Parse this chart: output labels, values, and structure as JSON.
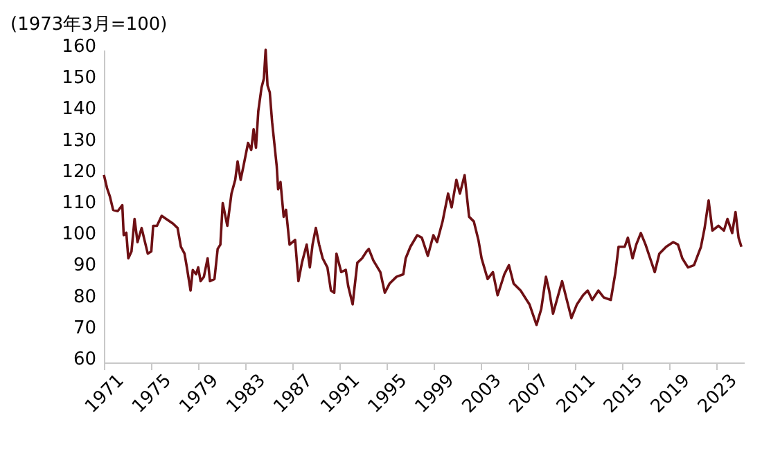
{
  "chart_data": {
    "type": "line",
    "ylabel": "(1973年3月=100)",
    "xlim": [
      1971,
      2025.3
    ],
    "xticks": [
      1971,
      1975,
      1979,
      1983,
      1987,
      1991,
      1995,
      1999,
      2003,
      2007,
      2011,
      2015,
      2019,
      2023
    ],
    "ylim": [
      60,
      160
    ],
    "yticks": [
      60,
      70,
      80,
      90,
      100,
      110,
      120,
      130,
      140,
      150,
      160
    ],
    "grid": false,
    "marker": "none",
    "line_style": "solid",
    "series": [
      {
        "color": "#6e1014",
        "x": [
          1971.0,
          1971.27,
          1971.5,
          1971.78,
          1972.17,
          1972.56,
          1972.68,
          1972.9,
          1973.07,
          1973.34,
          1973.6,
          1973.85,
          1974.2,
          1974.44,
          1974.72,
          1975.02,
          1975.18,
          1975.5,
          1975.9,
          1976.28,
          1976.86,
          1977.25,
          1977.53,
          1977.84,
          1978.04,
          1978.35,
          1978.54,
          1978.82,
          1979.0,
          1979.2,
          1979.48,
          1979.8,
          1980.0,
          1980.38,
          1980.65,
          1980.88,
          1981.08,
          1981.47,
          1981.82,
          1982.14,
          1982.34,
          1982.6,
          1982.84,
          1983.23,
          1983.5,
          1983.7,
          1983.9,
          1984.1,
          1984.37,
          1984.57,
          1984.72,
          1984.88,
          1985.07,
          1985.27,
          1985.66,
          1985.78,
          1985.98,
          1986.25,
          1986.45,
          1986.75,
          1987.22,
          1987.5,
          1987.8,
          1988.2,
          1988.47,
          1988.7,
          1988.98,
          1989.26,
          1989.56,
          1989.96,
          1990.26,
          1990.54,
          1990.73,
          1991.13,
          1991.52,
          1991.72,
          1992.1,
          1992.5,
          1992.9,
          1993.28,
          1993.47,
          1993.86,
          1994.45,
          1994.83,
          1995.23,
          1995.82,
          1996.4,
          1996.6,
          1997.0,
          1997.58,
          1997.97,
          1998.48,
          1998.95,
          1999.26,
          1999.73,
          2000.2,
          2000.5,
          2000.9,
          2001.2,
          2001.6,
          2001.98,
          2002.38,
          2002.77,
          2003.04,
          2003.55,
          2004.0,
          2004.4,
          2004.97,
          2005.36,
          2005.76,
          2006.35,
          2007.1,
          2007.7,
          2008.1,
          2008.5,
          2008.77,
          2009.1,
          2009.87,
          2010.27,
          2010.66,
          2011.13,
          2011.65,
          2012.04,
          2012.43,
          2012.95,
          2013.4,
          2014.0,
          2014.4,
          2014.66,
          2015.18,
          2015.45,
          2015.85,
          2016.16,
          2016.55,
          2016.95,
          2017.34,
          2017.73,
          2018.12,
          2018.7,
          2019.3,
          2019.7,
          2020.07,
          2020.55,
          2021.06,
          2021.65,
          2021.96,
          2022.3,
          2022.62,
          2023.13,
          2023.6,
          2023.9,
          2024.3,
          2024.58,
          2024.84,
          2025.08
        ],
        "values": [
          120,
          115.7,
          113.2,
          108.8,
          108.4,
          110.3,
          100.7,
          101.5,
          93.3,
          95.5,
          105.9,
          98.5,
          103,
          99.2,
          94.8,
          95.5,
          103.7,
          103.7,
          106.9,
          105.9,
          104.4,
          103,
          97,
          94.8,
          90.4,
          83,
          89.6,
          88.2,
          90.4,
          86,
          87.4,
          93.3,
          86,
          86.7,
          96.3,
          97.7,
          111,
          103.7,
          114,
          118.4,
          124.3,
          118.4,
          122.8,
          130.2,
          128,
          134.6,
          128.7,
          140.5,
          147.9,
          150.8,
          160,
          148.6,
          146.4,
          136.9,
          122.8,
          115.4,
          117.7,
          106.6,
          108.8,
          97.7,
          99.2,
          86,
          91.9,
          97.7,
          90.4,
          97.7,
          103,
          97.7,
          93.3,
          90.4,
          83,
          82.3,
          94.8,
          88.9,
          89.6,
          84.5,
          78.6,
          91.9,
          93.3,
          95.5,
          96.3,
          92.6,
          88.9,
          82.3,
          85.2,
          87.4,
          88.2,
          93.3,
          97,
          100.7,
          99.9,
          94.1,
          100.7,
          98.5,
          105.1,
          114,
          109.6,
          118.4,
          114,
          119.9,
          106.6,
          105.1,
          99.2,
          93.3,
          86.7,
          88.9,
          81.5,
          88.2,
          91.1,
          85.2,
          83,
          78.6,
          72,
          77.1,
          87.4,
          83,
          75.6,
          86,
          80,
          74.2,
          78.6,
          81.5,
          83,
          80,
          83,
          80.8,
          80,
          88.9,
          97,
          97,
          99.9,
          93.3,
          97.7,
          101.4,
          97.7,
          93.3,
          88.9,
          94.8,
          97,
          98.5,
          97.7,
          93.3,
          90.4,
          91.1,
          97,
          103,
          111.8,
          102.2,
          103.7,
          102.2,
          105.9,
          101.4,
          108.1,
          99.9,
          97
        ]
      }
    ]
  }
}
